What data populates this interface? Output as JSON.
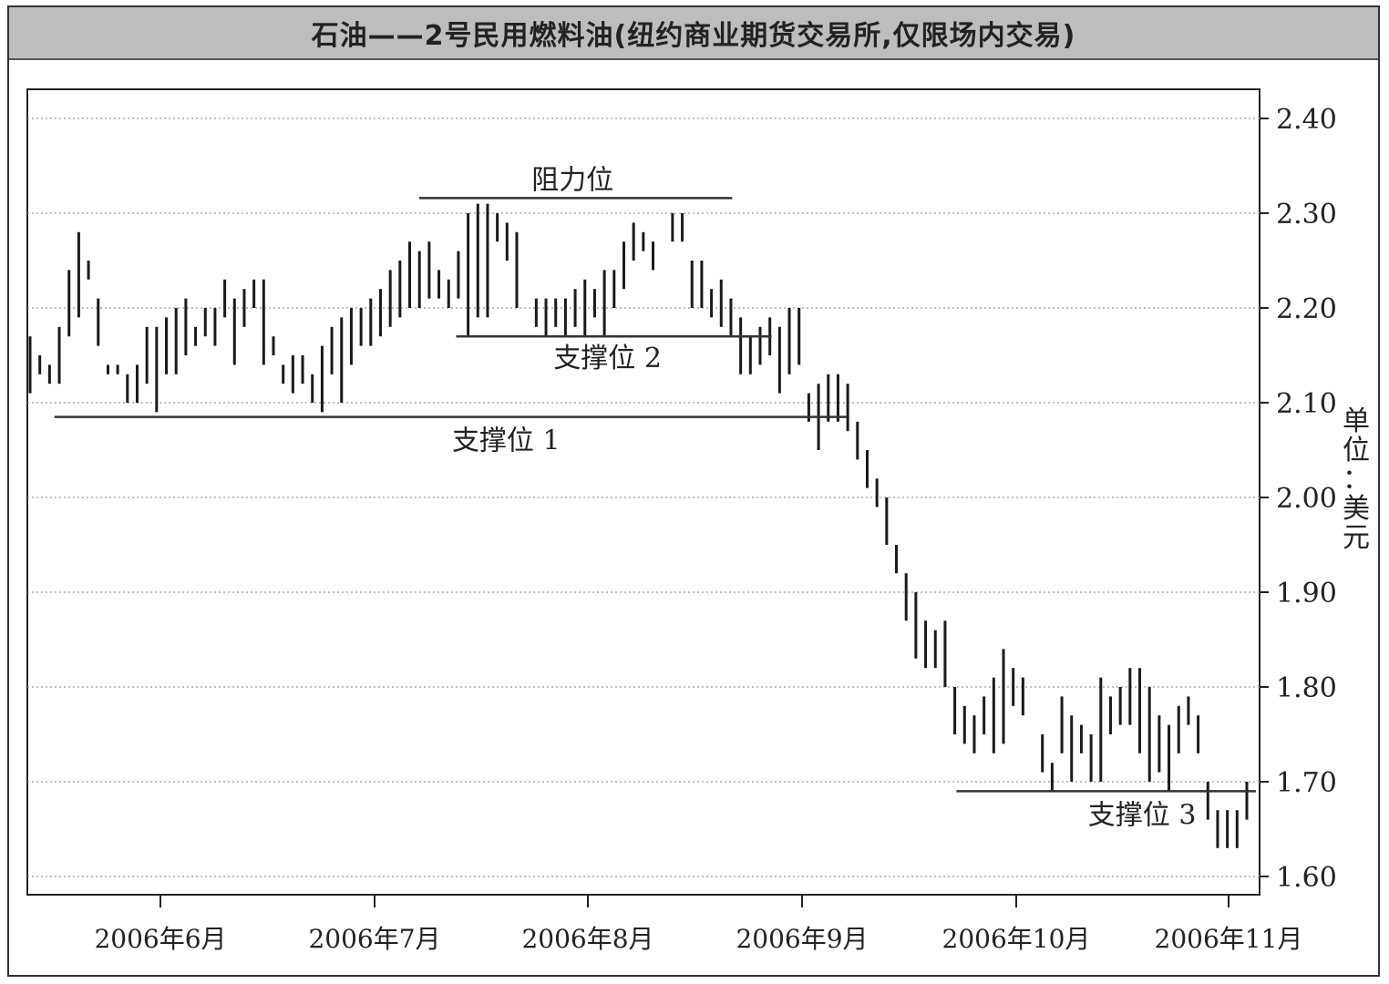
{
  "chart_data": {
    "type": "ohlc_bar",
    "title": "石油——2号民用燃料油(纽约商业期货交易所,仅限场内交易)",
    "y_unit_label": "单位：美元",
    "ylim": [
      1.58,
      2.43
    ],
    "y_ticks": [
      "2.40",
      "2.30",
      "2.20",
      "2.10",
      "2.00",
      "1.90",
      "1.80",
      "1.70",
      "1.60"
    ],
    "x_ticks": [
      "2006年6月",
      "2006年7月",
      "2006年8月",
      "2006年9月",
      "2006年10月",
      "2006年11月"
    ],
    "grid": true,
    "bars_low": [
      2.11,
      2.13,
      2.12,
      2.12,
      2.17,
      2.19,
      2.25,
      2.21,
      2.13,
      2.13,
      2.1,
      2.1,
      2.12,
      2.09,
      2.13,
      2.13,
      2.15,
      2.16,
      2.17,
      2.16,
      2.19,
      2.14,
      2.18,
      2.2,
      2.14,
      2.17,
      2.12,
      2.11,
      2.12,
      2.1,
      2.09,
      2.13,
      2.1,
      2.14,
      2.16,
      2.16,
      2.17,
      2.18,
      2.19,
      2.2,
      2.2,
      2.21,
      2.21,
      2.2,
      2.21,
      2.17,
      2.19,
      2.19,
      2.27,
      2.29,
      2.28,
      2.21,
      2.18,
      2.17,
      2.18,
      2.17,
      2.18,
      2.17,
      2.19,
      2.17,
      2.2,
      2.22,
      2.25,
      2.26,
      2.24,
      2.27,
      2.27,
      2.27,
      2.2,
      2.2,
      2.19,
      2.18,
      2.17,
      2.13,
      2.13,
      2.14,
      2.15,
      2.11,
      2.13,
      2.14,
      2.08,
      2.05,
      2.08,
      2.08,
      2.07,
      2.04,
      2.01,
      1.99,
      1.95,
      1.92,
      1.87,
      1.83,
      1.82,
      1.82,
      1.8,
      1.75,
      1.74,
      1.73,
      1.75,
      1.73,
      1.74,
      1.78,
      1.77,
      1.78,
      1.71,
      1.69,
      1.73,
      1.7,
      1.73,
      1.7,
      1.7,
      1.75,
      1.76,
      1.76,
      1.73,
      1.7,
      1.71,
      1.69,
      1.73,
      1.76,
      1.73,
      1.66,
      1.63,
      1.63,
      1.63,
      1.66
    ],
    "bars_high": [
      2.17,
      2.15,
      2.14,
      2.18,
      2.24,
      2.28,
      2.23,
      2.16,
      2.14,
      2.14,
      2.13,
      2.14,
      2.18,
      2.18,
      2.19,
      2.2,
      2.21,
      2.18,
      2.2,
      2.2,
      2.23,
      2.21,
      2.22,
      2.23,
      2.23,
      2.15,
      2.14,
      2.15,
      2.15,
      2.13,
      2.16,
      2.18,
      2.19,
      2.2,
      2.2,
      2.21,
      2.22,
      2.24,
      2.25,
      2.27,
      2.26,
      2.27,
      2.24,
      2.23,
      2.26,
      2.3,
      2.31,
      2.31,
      2.3,
      2.25,
      2.2,
      2.21,
      2.21,
      2.21,
      2.21,
      2.21,
      2.22,
      2.23,
      2.22,
      2.24,
      2.24,
      2.27,
      2.29,
      2.28,
      2.27,
      2.27,
      2.3,
      2.3,
      2.25,
      2.25,
      2.22,
      2.23,
      2.21,
      2.19,
      2.17,
      2.18,
      2.19,
      2.18,
      2.2,
      2.2,
      2.11,
      2.12,
      2.13,
      2.13,
      2.12,
      2.08,
      2.05,
      2.02,
      2.0,
      1.95,
      1.92,
      1.9,
      1.87,
      1.86,
      1.87,
      1.8,
      1.78,
      1.77,
      1.79,
      1.81,
      1.84,
      1.82,
      1.81,
      1.78,
      1.75,
      1.72,
      1.79,
      1.77,
      1.76,
      1.75,
      1.81,
      1.79,
      1.8,
      1.82,
      1.82,
      1.8,
      1.77,
      1.76,
      1.78,
      1.79,
      1.77,
      1.7,
      1.67,
      1.67,
      1.67,
      1.7
    ],
    "support_resistance": [
      {
        "label": "阻力位",
        "value": 2.316,
        "x_from": 0.318,
        "x_to": 0.572
      },
      {
        "label": "支撑位 2",
        "value": 2.17,
        "x_from": 0.348,
        "x_to": 0.604
      },
      {
        "label": "支撑位 1",
        "value": 2.085,
        "x_from": 0.022,
        "x_to": 0.665
      },
      {
        "label": "支撑位 3",
        "value": 1.69,
        "x_from": 0.754,
        "x_to": 0.997
      }
    ]
  }
}
